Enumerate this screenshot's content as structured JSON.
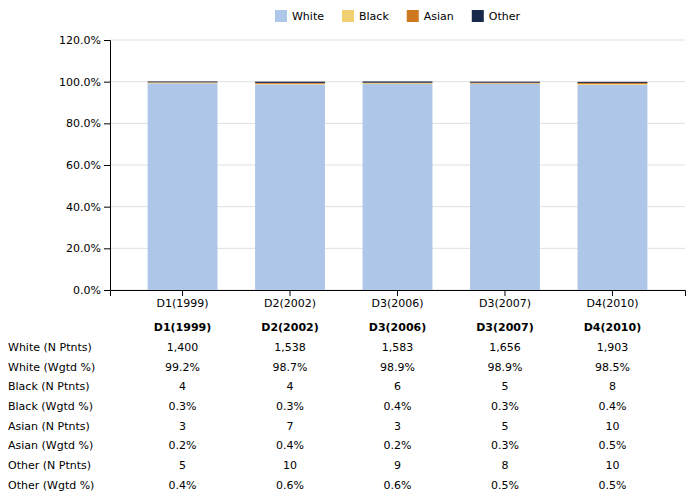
{
  "chart_data": {
    "type": "bar",
    "stacked": true,
    "categories": [
      "D1(1999)",
      "D2(2002)",
      "D3(2006)",
      "D3(2007)",
      "D4(2010)"
    ],
    "series": [
      {
        "name": "White",
        "color": "#aec6e8",
        "values": [
          99.2,
          98.7,
          98.9,
          98.9,
          98.5
        ]
      },
      {
        "name": "Black",
        "color": "#f0d070",
        "values": [
          0.3,
          0.3,
          0.4,
          0.3,
          0.4
        ]
      },
      {
        "name": "Asian",
        "color": "#d07820",
        "values": [
          0.2,
          0.4,
          0.2,
          0.3,
          0.5
        ]
      },
      {
        "name": "Other",
        "color": "#182848",
        "values": [
          0.4,
          0.6,
          0.6,
          0.5,
          0.5
        ]
      }
    ],
    "ylim": [
      0,
      120
    ],
    "yticks": [
      {
        "value": 0,
        "label": "0.0%"
      },
      {
        "value": 20,
        "label": "20.0%"
      },
      {
        "value": 40,
        "label": "40.0%"
      },
      {
        "value": 60,
        "label": "60.0%"
      },
      {
        "value": 80,
        "label": "80.0%"
      },
      {
        "value": 100,
        "label": "100.0%"
      },
      {
        "value": 120,
        "label": "120.0%"
      }
    ],
    "grid": true,
    "legend": "top",
    "table": {
      "rows": [
        {
          "label": "White (N Ptnts)",
          "values": [
            1400,
            1538,
            1583,
            1656,
            1903
          ],
          "value_labels": [
            "1,400",
            "1,538",
            "1,583",
            "1,656",
            "1,903"
          ]
        },
        {
          "label": "White (Wgtd %)",
          "values": [
            99.2,
            98.7,
            98.9,
            98.9,
            98.5
          ],
          "value_labels": [
            "99.2%",
            "98.7%",
            "98.9%",
            "98.9%",
            "98.5%"
          ]
        },
        {
          "label": "Black (N Ptnts)",
          "values": [
            4,
            4,
            6,
            5,
            8
          ],
          "value_labels": [
            "4",
            "4",
            "6",
            "5",
            "8"
          ]
        },
        {
          "label": "Black (Wgtd %)",
          "values": [
            0.3,
            0.3,
            0.4,
            0.3,
            0.4
          ],
          "value_labels": [
            "0.3%",
            "0.3%",
            "0.4%",
            "0.3%",
            "0.4%"
          ]
        },
        {
          "label": "Asian (N Ptnts)",
          "values": [
            3,
            7,
            3,
            5,
            10
          ],
          "value_labels": [
            "3",
            "7",
            "3",
            "5",
            "10"
          ]
        },
        {
          "label": "Asian (Wgtd %)",
          "values": [
            0.2,
            0.4,
            0.2,
            0.3,
            0.5
          ],
          "value_labels": [
            "0.2%",
            "0.4%",
            "0.2%",
            "0.3%",
            "0.5%"
          ]
        },
        {
          "label": "Other (N Ptnts)",
          "values": [
            5,
            10,
            9,
            8,
            10
          ],
          "value_labels": [
            "5",
            "10",
            "9",
            "8",
            "10"
          ]
        },
        {
          "label": "Other (Wgtd %)",
          "values": [
            0.4,
            0.6,
            0.6,
            0.5,
            0.5
          ],
          "value_labels": [
            "0.4%",
            "0.6%",
            "0.6%",
            "0.5%",
            "0.5%"
          ]
        }
      ]
    }
  }
}
